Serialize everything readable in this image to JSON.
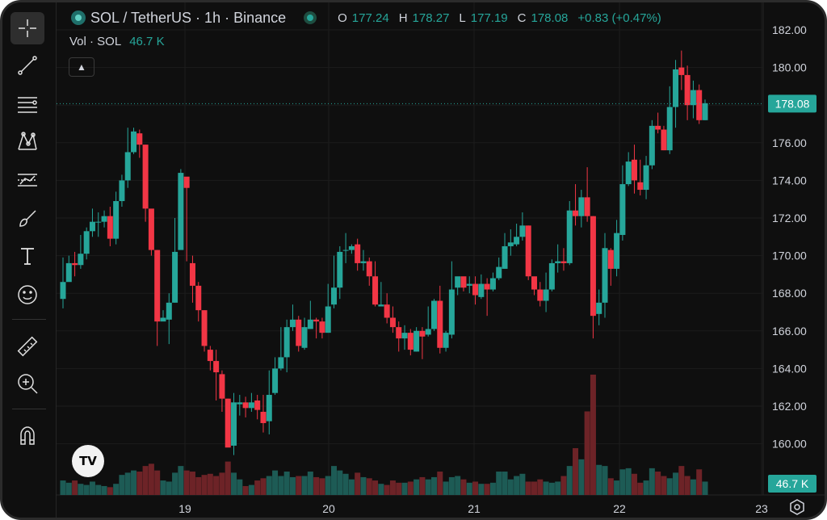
{
  "legend": {
    "symbol": "SOL / TetherUS · 1h · Binance",
    "ohlc": [
      {
        "k": "O",
        "v": "177.24"
      },
      {
        "k": "H",
        "v": "178.27"
      },
      {
        "k": "L",
        "v": "177.19"
      },
      {
        "k": "C",
        "v": "178.08"
      }
    ],
    "change": "+0.83 (+0.47%)"
  },
  "volume": {
    "label": "Vol · SOL",
    "value": "46.7 K"
  },
  "price_label": "178.08",
  "volume_label": "46.7 K",
  "logo_text": "TV",
  "toolbar": [
    "crosshair-icon",
    "trend-line-icon",
    "fib-icon",
    "pattern-icon",
    "forecast-icon",
    "brush-icon",
    "text-icon",
    "emoji-icon",
    "ruler-icon",
    "zoom-icon",
    "magnet-icon"
  ],
  "colors": {
    "up": "#26a69a",
    "down": "#f23645",
    "bg": "#0f0f0f",
    "grid": "#1c1c1c",
    "text": "#d1d4dc"
  },
  "chart_data": {
    "type": "candlestick",
    "interval": "1h",
    "y_ticks": [
      "182.00",
      "180.00",
      "178.00",
      "176.00",
      "174.00",
      "172.00",
      "170.00",
      "168.00",
      "166.00",
      "164.00",
      "162.00",
      "160.00"
    ],
    "x_ticks": [
      "19",
      "20",
      "21",
      "22",
      "23"
    ],
    "current_price": 178.08,
    "candles": [
      [
        167.7,
        168.6,
        169.9,
        167.2,
        13
      ],
      [
        168.6,
        169.6,
        170.0,
        168.7,
        11
      ],
      [
        169.6,
        169.5,
        170.2,
        168.9,
        13
      ],
      [
        169.5,
        170.1,
        171.1,
        169.3,
        10
      ],
      [
        170.1,
        171.3,
        171.5,
        169.8,
        9
      ],
      [
        171.3,
        171.8,
        172.5,
        171.0,
        12
      ],
      [
        171.8,
        171.8,
        172.3,
        171.0,
        9
      ],
      [
        171.8,
        172.1,
        172.4,
        171.5,
        8
      ],
      [
        172.1,
        170.9,
        172.6,
        170.5,
        7
      ],
      [
        170.9,
        172.9,
        173.4,
        170.6,
        10
      ],
      [
        172.9,
        174.0,
        174.3,
        172.6,
        18
      ],
      [
        174.0,
        175.5,
        176.8,
        173.6,
        20
      ],
      [
        175.5,
        176.6,
        176.8,
        175.4,
        22
      ],
      [
        176.5,
        175.9,
        176.7,
        175.2,
        21
      ],
      [
        175.9,
        172.5,
        175.9,
        171.8,
        26
      ],
      [
        172.5,
        170.3,
        172.4,
        170.0,
        28
      ],
      [
        170.3,
        166.5,
        170.3,
        165.2,
        22
      ],
      [
        166.5,
        166.7,
        167.1,
        166.7,
        13
      ],
      [
        166.6,
        167.5,
        168.0,
        165.3,
        12
      ],
      [
        167.5,
        170.2,
        172.0,
        167.5,
        20
      ],
      [
        170.3,
        174.4,
        174.6,
        170.4,
        26
      ],
      [
        174.2,
        173.6,
        174.0,
        169.7,
        22
      ],
      [
        169.6,
        168.4,
        170.0,
        167.5,
        21
      ],
      [
        168.4,
        167.1,
        168.6,
        166.5,
        16
      ],
      [
        167.1,
        165.2,
        167.1,
        164.9,
        18
      ],
      [
        165.0,
        164.4,
        165.2,
        163.9,
        19
      ],
      [
        164.4,
        163.8,
        165.0,
        162.3,
        17
      ],
      [
        163.7,
        162.4,
        163.9,
        161.7,
        20
      ],
      [
        162.4,
        159.8,
        162.4,
        160.2,
        30
      ],
      [
        159.9,
        162.2,
        162.7,
        159.4,
        20
      ],
      [
        162.1,
        162.2,
        162.6,
        161.5,
        14
      ],
      [
        162.2,
        161.9,
        162.5,
        161.4,
        8
      ],
      [
        161.9,
        162.2,
        162.7,
        161.7,
        9
      ],
      [
        162.3,
        161.8,
        162.6,
        161.3,
        13
      ],
      [
        161.7,
        161.1,
        162.6,
        160.6,
        15
      ],
      [
        161.2,
        162.6,
        163.9,
        160.5,
        17
      ],
      [
        162.7,
        164.0,
        164.6,
        162.6,
        22
      ],
      [
        164.0,
        164.6,
        166.2,
        163.9,
        17
      ],
      [
        164.6,
        166.2,
        166.6,
        163.8,
        21
      ],
      [
        166.2,
        166.6,
        167.4,
        166.0,
        16
      ],
      [
        166.6,
        165.2,
        166.8,
        164.9,
        17
      ],
      [
        165.1,
        166.2,
        166.7,
        165.0,
        17
      ],
      [
        166.1,
        166.6,
        167.6,
        166.1,
        21
      ],
      [
        166.6,
        166.5,
        166.7,
        165.6,
        16
      ],
      [
        166.5,
        165.9,
        166.7,
        165.6,
        15
      ],
      [
        165.9,
        167.3,
        168.5,
        165.9,
        17
      ],
      [
        167.4,
        168.3,
        170.0,
        167.2,
        26
      ],
      [
        168.3,
        170.2,
        170.5,
        167.7,
        22
      ],
      [
        170.3,
        170.3,
        171.2,
        169.6,
        19
      ],
      [
        170.3,
        170.5,
        170.6,
        170.1,
        14
      ],
      [
        170.6,
        169.6,
        170.9,
        169.2,
        20
      ],
      [
        169.6,
        169.7,
        170.3,
        169.2,
        16
      ],
      [
        169.7,
        168.9,
        169.9,
        168.4,
        15
      ],
      [
        168.9,
        167.4,
        169.7,
        167.3,
        13
      ],
      [
        167.3,
        167.4,
        168.6,
        167.3,
        10
      ],
      [
        167.4,
        166.7,
        168.0,
        166.4,
        9
      ],
      [
        166.7,
        166.2,
        167.3,
        165.9,
        13
      ],
      [
        166.2,
        165.6,
        166.5,
        164.9,
        11
      ],
      [
        165.6,
        165.9,
        166.3,
        165.0,
        11
      ],
      [
        165.9,
        165.0,
        166.1,
        164.7,
        12
      ],
      [
        164.9,
        166.0,
        166.2,
        164.9,
        14
      ],
      [
        166.0,
        165.7,
        166.2,
        164.5,
        16
      ],
      [
        165.8,
        166.1,
        167.3,
        165.7,
        14
      ],
      [
        166.1,
        167.6,
        167.7,
        166.0,
        16
      ],
      [
        167.6,
        165.1,
        168.4,
        164.8,
        21
      ],
      [
        165.1,
        165.9,
        166.0,
        164.9,
        12
      ],
      [
        165.8,
        168.2,
        169.7,
        165.6,
        16
      ],
      [
        168.3,
        168.9,
        168.8,
        167.9,
        17
      ],
      [
        168.9,
        168.3,
        168.8,
        168.1,
        14
      ],
      [
        168.4,
        168.5,
        168.9,
        168.0,
        11
      ],
      [
        168.5,
        167.9,
        168.9,
        167.4,
        12
      ],
      [
        167.8,
        168.5,
        169.0,
        167.7,
        10
      ],
      [
        168.5,
        168.2,
        168.8,
        166.8,
        10
      ],
      [
        168.2,
        168.8,
        169.1,
        168.1,
        11
      ],
      [
        168.8,
        169.4,
        169.9,
        168.7,
        21
      ],
      [
        169.3,
        170.5,
        171.2,
        169.3,
        21
      ],
      [
        170.5,
        170.7,
        171.4,
        170.0,
        14
      ],
      [
        170.6,
        171.0,
        171.7,
        170.5,
        17
      ],
      [
        171.0,
        171.6,
        172.3,
        170.8,
        19
      ],
      [
        171.6,
        168.9,
        171.6,
        168.7,
        12
      ],
      [
        168.9,
        168.2,
        168.6,
        167.9,
        12
      ],
      [
        168.2,
        167.6,
        168.6,
        167.3,
        14
      ],
      [
        167.6,
        168.2,
        169.1,
        167.0,
        12
      ],
      [
        168.2,
        169.6,
        169.8,
        168.1,
        11
      ],
      [
        169.6,
        169.7,
        170.6,
        169.1,
        12
      ],
      [
        169.7,
        169.6,
        170.4,
        169.2,
        17
      ],
      [
        169.6,
        172.4,
        172.9,
        169.5,
        26
      ],
      [
        172.4,
        172.1,
        173.8,
        171.6,
        42
      ],
      [
        172.1,
        173.1,
        173.5,
        171.5,
        32
      ],
      [
        173.1,
        172.1,
        174.7,
        171.8,
        75
      ],
      [
        172.1,
        166.8,
        172.1,
        165.6,
        108
      ],
      [
        166.9,
        167.5,
        168.2,
        166.3,
        27
      ],
      [
        167.5,
        170.4,
        171.2,
        166.7,
        26
      ],
      [
        170.3,
        169.3,
        170.4,
        168.4,
        15
      ],
      [
        169.3,
        171.2,
        171.9,
        168.9,
        13
      ],
      [
        171.1,
        173.8,
        174.8,
        170.8,
        23
      ],
      [
        173.8,
        175.0,
        175.5,
        173.7,
        24
      ],
      [
        175.1,
        174.0,
        175.9,
        173.3,
        19
      ],
      [
        173.9,
        173.5,
        175.1,
        173.2,
        11
      ],
      [
        173.5,
        174.8,
        175.3,
        173.0,
        13
      ],
      [
        174.8,
        176.9,
        177.2,
        174.6,
        24
      ],
      [
        176.9,
        176.7,
        177.6,
        176.5,
        21
      ],
      [
        176.7,
        175.6,
        176.9,
        175.6,
        17
      ],
      [
        175.6,
        177.9,
        179.0,
        175.4,
        15
      ],
      [
        177.9,
        179.9,
        180.4,
        176.8,
        20
      ],
      [
        180.0,
        179.6,
        180.9,
        178.8,
        26
      ],
      [
        179.6,
        178.0,
        180.1,
        177.2,
        17
      ],
      [
        178.0,
        178.8,
        179.3,
        177.3,
        14
      ],
      [
        178.8,
        177.2,
        179.1,
        177.0,
        23
      ],
      [
        177.2,
        178.1,
        178.3,
        177.2,
        12
      ]
    ]
  }
}
